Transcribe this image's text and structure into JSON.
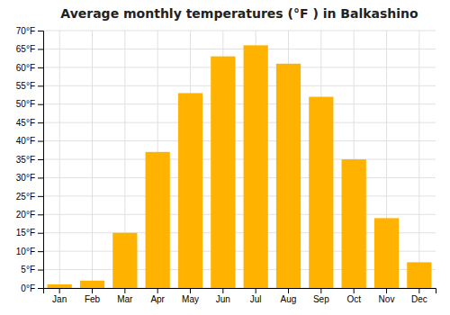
{
  "chart_data": {
    "type": "bar",
    "title": "Average monthly temperatures (°F ) in Balkashino",
    "categories": [
      "Jan",
      "Feb",
      "Mar",
      "Apr",
      "May",
      "Jun",
      "Jul",
      "Aug",
      "Sep",
      "Oct",
      "Nov",
      "Dec"
    ],
    "values": [
      1,
      2,
      15,
      37,
      53,
      63,
      66,
      61,
      52,
      35,
      19,
      7
    ],
    "color": "#FFB300",
    "ylim": [
      0,
      70
    ],
    "yticks": [
      {
        "value": 0,
        "label": "0°F"
      },
      {
        "value": 5,
        "label": "5°F"
      },
      {
        "value": 10,
        "label": "10°F"
      },
      {
        "value": 15,
        "label": "15°F"
      },
      {
        "value": 20,
        "label": "20°F"
      },
      {
        "value": 25,
        "label": "25°F"
      },
      {
        "value": 30,
        "label": "30°F"
      },
      {
        "value": 35,
        "label": "35°F"
      },
      {
        "value": 40,
        "label": "40°F"
      },
      {
        "value": 45,
        "label": "45°F"
      },
      {
        "value": 50,
        "label": "50°F"
      },
      {
        "value": 55,
        "label": "55°F"
      },
      {
        "value": 60,
        "label": "60°F"
      },
      {
        "value": 65,
        "label": "65°F"
      },
      {
        "value": 70,
        "label": "70°F"
      }
    ],
    "grid": true
  }
}
